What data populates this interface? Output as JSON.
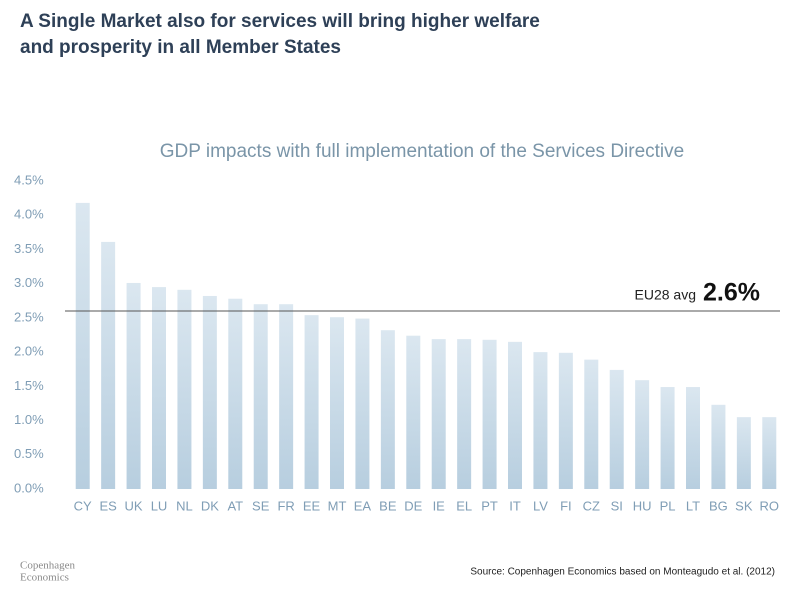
{
  "header": {
    "title": [
      "A Single Market also for services will bring higher welfare",
      "and prosperity in all Member States"
    ]
  },
  "chart_data": {
    "type": "bar",
    "title": "GDP impacts with full implementation of the Services Directive",
    "categories": [
      "CY",
      "ES",
      "UK",
      "LU",
      "NL",
      "DK",
      "AT",
      "SE",
      "FR",
      "EE",
      "MT",
      "EA",
      "BE",
      "DE",
      "IE",
      "EL",
      "PT",
      "IT",
      "LV",
      "FI",
      "CZ",
      "SI",
      "HU",
      "PL",
      "LT",
      "BG",
      "SK",
      "RO"
    ],
    "values": [
      4.18,
      3.61,
      3.01,
      2.95,
      2.91,
      2.82,
      2.78,
      2.7,
      2.7,
      2.54,
      2.51,
      2.49,
      2.32,
      2.24,
      2.19,
      2.19,
      2.18,
      2.15,
      2.0,
      1.99,
      1.89,
      1.74,
      1.59,
      1.49,
      1.49,
      1.23,
      1.05,
      1.05
    ],
    "color": "#c3d6e4",
    "ylim": [
      0,
      4.5
    ],
    "yticks": [
      {
        "value": 0,
        "label": "0.0%"
      },
      {
        "value": 0.5,
        "label": "0.5%"
      },
      {
        "value": 1,
        "label": "1.0%"
      },
      {
        "value": 1.5,
        "label": "1.5%"
      },
      {
        "value": 2,
        "label": "2.0%"
      },
      {
        "value": 2.5,
        "label": "2.5%"
      },
      {
        "value": 3,
        "label": "3.0%"
      },
      {
        "value": 3.5,
        "label": "3.5%"
      },
      {
        "value": 4,
        "label": "4.0%"
      },
      {
        "value": 4.5,
        "label": "4.5%"
      }
    ],
    "grid": false,
    "reference_line": {
      "label": "EU28 avg",
      "value": 2.6,
      "value_label": "2.6%"
    }
  },
  "source": "Source: Copenhagen Economics based on Monteagudo et al. (2012)",
  "logo": [
    "Copenhagen",
    "Economics"
  ]
}
